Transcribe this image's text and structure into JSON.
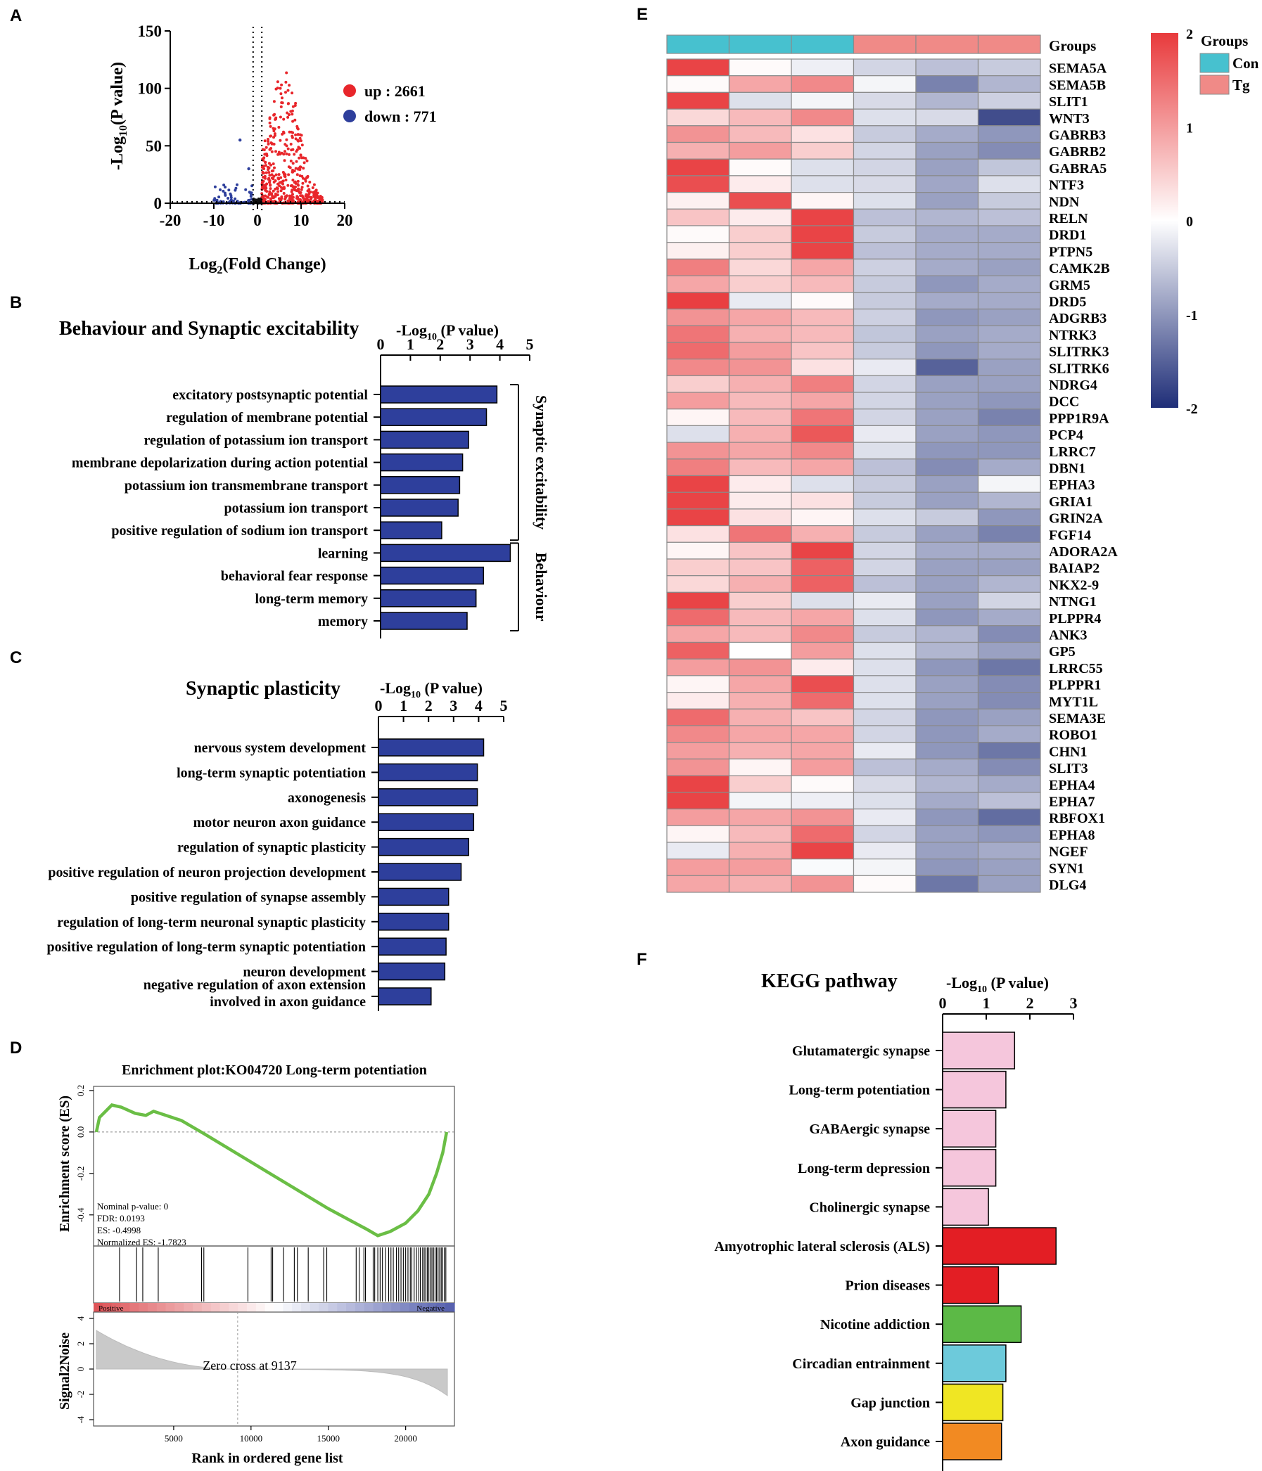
{
  "panel_labels": [
    "A",
    "B",
    "C",
    "D",
    "E",
    "F"
  ],
  "chart_data": [
    {
      "id": "A",
      "type": "scatter",
      "title": "",
      "xlabel_main": "Log",
      "xlabel_sub": "2",
      "xlabel_rest": "(Fold Change)",
      "ylabel_main": "-Log",
      "ylabel_sub": "10",
      "ylabel_rest": "(P value)",
      "xlim": [
        -20,
        20
      ],
      "ylim": [
        0,
        150
      ],
      "xticks": [
        "-20",
        "-10",
        "0",
        "10",
        "20"
      ],
      "yticks": [
        "0",
        "50",
        "100",
        "150"
      ],
      "legend": [
        {
          "label": "up : 2661",
          "color": "#e8262b"
        },
        {
          "label": "down : 771",
          "color": "#2e3f9c"
        }
      ],
      "thresholds": {
        "x": [
          -1,
          1
        ],
        "y": 1.3
      },
      "series": [
        {
          "name": "up",
          "count": 2661,
          "color": "#e8262b",
          "x_range": [
            1,
            15
          ],
          "y_max": 118
        },
        {
          "name": "down",
          "count": 771,
          "color": "#2e3f9c",
          "x_range": [
            -10,
            -1
          ],
          "y_max": 55
        },
        {
          "name": "ns",
          "color": "#111111",
          "x_range": [
            -1,
            1
          ],
          "y_max": 4
        }
      ]
    },
    {
      "id": "B",
      "type": "bar",
      "title": "Behaviour and Synaptic excitability",
      "xlabel_main": "-Log",
      "xlabel_sub": "10",
      "xlabel_rest": " (P value)",
      "xlim": [
        0,
        5
      ],
      "xticks": [
        "0",
        "1",
        "2",
        "3",
        "4",
        "5"
      ],
      "categories": [
        "excitatory postsynaptic potential",
        "regulation of membrane potential",
        "regulation of potassium ion transport",
        "membrane depolarization during action potential",
        "potassium ion transmembrane transport",
        "potassium ion transport",
        "positive regulation of sodium ion transport",
        "learning",
        "behavioral fear response",
        "long-term memory",
        "memory"
      ],
      "values": [
        3.9,
        3.55,
        2.95,
        2.75,
        2.65,
        2.6,
        2.05,
        4.35,
        3.45,
        3.2,
        2.9
      ],
      "color": "#2e3f9c",
      "groups": [
        {
          "label": "Synaptic excitability",
          "from": 0,
          "to": 6
        },
        {
          "label": "Behaviour",
          "from": 7,
          "to": 10
        }
      ]
    },
    {
      "id": "C",
      "type": "bar",
      "title": "Synaptic plasticity",
      "xlabel_main": "-Log",
      "xlabel_sub": "10",
      "xlabel_rest": " (P value)",
      "xlim": [
        0,
        5
      ],
      "xticks": [
        "0",
        "1",
        "2",
        "3",
        "4",
        "5"
      ],
      "categories": [
        [
          "nervous system development"
        ],
        [
          "long-term synaptic potentiation"
        ],
        [
          "axonogenesis"
        ],
        [
          "motor neuron axon guidance"
        ],
        [
          "regulation of synaptic plasticity"
        ],
        [
          "positive regulation of neuron projection development"
        ],
        [
          "positive regulation of synapse assembly"
        ],
        [
          "regulation of long-term neuronal synaptic plasticity"
        ],
        [
          "positive regulation of long-term synaptic potentiation"
        ],
        [
          "neuron development"
        ],
        [
          "negative regulation of axon extension",
          "involved in axon guidance"
        ]
      ],
      "values": [
        4.2,
        3.95,
        3.95,
        3.8,
        3.6,
        3.3,
        2.8,
        2.8,
        2.7,
        2.65,
        2.1
      ],
      "color": "#2e3f9c"
    },
    {
      "id": "D",
      "type": "line",
      "title": "Enrichment plot:KO04720 Long-term potentiation",
      "ylabel": "Enrichment score (ES)",
      "ylabel2": "Signal2Noise",
      "xlabel": "Rank in ordered gene list",
      "xlim": [
        0,
        22700
      ],
      "ylim": [
        -0.55,
        0.22
      ],
      "ylim2": [
        -4.5,
        4.5
      ],
      "yticks": [
        "0.2",
        "0.0",
        "-0.2",
        "-0.4"
      ],
      "yticks2": [
        "4",
        "2",
        "0",
        "-2",
        "-4"
      ],
      "xticks": [
        "5000",
        "10000",
        "15000",
        "20000"
      ],
      "stats": [
        "Nominal p-value: 0",
        "FDR: 0.0193",
        "ES: -0.4998",
        "Normalized ES: -1.7823"
      ],
      "zero_cross": "Zero cross at 9137",
      "zero_cross_rank": 9137,
      "bar_labels": [
        "Positive",
        "Negative"
      ],
      "es_curve": [
        [
          0,
          0.0
        ],
        [
          200,
          0.07
        ],
        [
          600,
          0.1
        ],
        [
          1000,
          0.13
        ],
        [
          1600,
          0.12
        ],
        [
          2500,
          0.09
        ],
        [
          3200,
          0.08
        ],
        [
          3700,
          0.1
        ],
        [
          4500,
          0.08
        ],
        [
          5500,
          0.055
        ],
        [
          7000,
          -0.01
        ],
        [
          9000,
          -0.1
        ],
        [
          11000,
          -0.19
        ],
        [
          13000,
          -0.28
        ],
        [
          15000,
          -0.37
        ],
        [
          16500,
          -0.43
        ],
        [
          17500,
          -0.47
        ],
        [
          18200,
          -0.5
        ],
        [
          19000,
          -0.48
        ],
        [
          20000,
          -0.44
        ],
        [
          20800,
          -0.38
        ],
        [
          21500,
          -0.3
        ],
        [
          22000,
          -0.2
        ],
        [
          22400,
          -0.1
        ],
        [
          22650,
          0.0
        ]
      ],
      "hits": [
        1500,
        2600,
        3000,
        4000,
        6800,
        6950,
        9800,
        11300,
        11400,
        12100,
        12800,
        13000,
        13700,
        14700,
        14900,
        16800,
        17000,
        17300,
        17400,
        17900,
        18000,
        18200,
        18350,
        18500,
        18700,
        18900,
        19050,
        19200,
        19400,
        19550,
        19700,
        19850,
        20000,
        20150,
        20300,
        20400,
        20550,
        20700,
        20850,
        20950,
        21100,
        21200,
        21300,
        21400,
        21500,
        21600,
        21700,
        21800,
        21900,
        22000,
        22100,
        22200,
        22300,
        22400,
        22500,
        22600
      ]
    },
    {
      "id": "E",
      "type": "heatmap",
      "group_row_label": "Groups",
      "groups": [
        "Con",
        "Con",
        "Con",
        "Tg",
        "Tg",
        "Tg"
      ],
      "group_colors": {
        "Con": "#47c1cf",
        "Tg": "#f08a87"
      },
      "legend_title": "Groups",
      "legend": [
        {
          "label": "Con",
          "color": "#47c1cf"
        },
        {
          "label": "Tg",
          "color": "#f08a87"
        }
      ],
      "colorbar": {
        "min": -2,
        "max": 2,
        "ticks": [
          "2",
          "1",
          "0",
          "-1",
          "-2"
        ],
        "colors": [
          "#e83a3c",
          "#ffffff",
          "#1f2e78"
        ]
      },
      "rows": [
        "SEMA5A",
        "SEMA5B",
        "SLIT1",
        "WNT3",
        "GABRB3",
        "GABRB2",
        "GABRA5",
        "NTF3",
        "NDN",
        "RELN",
        "DRD1",
        "PTPN5",
        "CAMK2B",
        "GRM5",
        "DRD5",
        "ADGRB3",
        "NTRK3",
        "SLITRK3",
        "SLITRK6",
        "NDRG4",
        "DCC",
        "PPP1R9A",
        "PCP4",
        "LRRC7",
        "DBN1",
        "EPHA3",
        "GRIA1",
        "GRIN2A",
        "FGF14",
        "ADORA2A",
        "BAIAP2",
        "NKX2-9",
        "NTNG1",
        "PLPPR4",
        "ANK3",
        "GP5",
        "LRRC55",
        "PLPPR1",
        "MYT1L",
        "SEMA3E",
        "ROBO1",
        "CHN1",
        "SLIT3",
        "EPHA4",
        "EPHA7",
        "RBFOX1",
        "EPHA8",
        "NGEF",
        "SYN1",
        "DLG4"
      ],
      "values": [
        [
          1.9,
          0.05,
          -0.15,
          -0.4,
          -0.6,
          -0.5
        ],
        [
          0.05,
          0.9,
          1.2,
          -0.1,
          -1.2,
          -0.7
        ],
        [
          1.9,
          -0.3,
          -0.1,
          -0.35,
          -0.7,
          -0.45
        ],
        [
          0.4,
          0.7,
          1.2,
          -0.3,
          -0.35,
          -1.7
        ],
        [
          1.1,
          0.7,
          0.3,
          -0.5,
          -0.8,
          -1.0
        ],
        [
          0.8,
          1.0,
          0.5,
          -0.4,
          -0.9,
          -1.1
        ],
        [
          1.9,
          0.05,
          -0.3,
          -0.4,
          -0.9,
          -0.55
        ],
        [
          1.8,
          0.2,
          -0.3,
          -0.35,
          -0.85,
          -0.3
        ],
        [
          0.15,
          1.8,
          0.1,
          -0.3,
          -0.9,
          -0.5
        ],
        [
          0.6,
          0.2,
          1.9,
          -0.6,
          -0.7,
          -0.6
        ],
        [
          0.05,
          0.5,
          1.9,
          -0.5,
          -0.8,
          -0.8
        ],
        [
          0.15,
          0.5,
          1.9,
          -0.6,
          -0.8,
          -0.8
        ],
        [
          1.3,
          0.4,
          0.9,
          -0.45,
          -0.8,
          -0.9
        ],
        [
          0.9,
          0.5,
          0.7,
          -0.5,
          -1.0,
          -0.8
        ],
        [
          1.95,
          -0.2,
          0.05,
          -0.5,
          -0.8,
          -0.8
        ],
        [
          1.1,
          0.9,
          0.7,
          -0.45,
          -1.0,
          -0.9
        ],
        [
          1.4,
          0.8,
          0.7,
          -0.55,
          -0.9,
          -0.8
        ],
        [
          1.5,
          1.0,
          0.6,
          -0.5,
          -1.0,
          -0.8
        ],
        [
          1.2,
          1.1,
          0.3,
          -0.2,
          -1.5,
          -0.9
        ],
        [
          0.5,
          0.8,
          1.3,
          -0.4,
          -0.9,
          -0.9
        ],
        [
          1.0,
          0.7,
          0.9,
          -0.4,
          -0.9,
          -1.0
        ],
        [
          0.1,
          0.7,
          1.4,
          -0.4,
          -0.9,
          -1.2
        ],
        [
          -0.3,
          0.8,
          1.7,
          -0.2,
          -0.9,
          -1.0
        ],
        [
          1.1,
          0.9,
          1.2,
          -0.3,
          -1.0,
          -1.0
        ],
        [
          1.3,
          0.7,
          0.9,
          -0.6,
          -1.1,
          -0.8
        ],
        [
          1.9,
          0.2,
          -0.3,
          -0.5,
          -0.9,
          -0.1
        ],
        [
          1.9,
          0.2,
          0.3,
          -0.5,
          -0.9,
          -0.7
        ],
        [
          1.9,
          0.3,
          0.1,
          -0.3,
          -0.5,
          -1.0
        ],
        [
          0.3,
          1.4,
          0.8,
          -0.5,
          -0.9,
          -1.2
        ],
        [
          0.1,
          0.6,
          1.9,
          -0.4,
          -0.8,
          -0.8
        ],
        [
          0.5,
          0.6,
          1.6,
          -0.4,
          -0.9,
          -0.9
        ],
        [
          0.4,
          0.8,
          1.6,
          -0.6,
          -0.9,
          -0.7
        ],
        [
          1.9,
          0.5,
          -0.3,
          -0.2,
          -0.9,
          -0.4
        ],
        [
          1.5,
          0.7,
          0.9,
          -0.3,
          -1.0,
          -0.8
        ],
        [
          0.9,
          0.7,
          1.2,
          -0.5,
          -0.7,
          -1.1
        ],
        [
          1.6,
          0.0,
          1.0,
          -0.3,
          -0.7,
          -0.9
        ],
        [
          1.0,
          1.1,
          0.2,
          -0.3,
          -1.0,
          -1.3
        ],
        [
          0.1,
          0.9,
          1.8,
          -0.3,
          -0.9,
          -1.1
        ],
        [
          0.2,
          0.8,
          1.5,
          -0.3,
          -0.9,
          -1.1
        ],
        [
          1.5,
          0.8,
          0.6,
          -0.4,
          -1.0,
          -0.9
        ],
        [
          1.2,
          0.9,
          0.9,
          -0.4,
          -1.0,
          -0.8
        ],
        [
          1.0,
          0.8,
          0.9,
          -0.2,
          -1.0,
          -1.3
        ],
        [
          1.1,
          0.1,
          1.0,
          -0.6,
          -0.8,
          -1.1
        ],
        [
          1.9,
          0.5,
          0.05,
          -0.35,
          -0.7,
          -0.8
        ],
        [
          1.9,
          -0.1,
          -0.15,
          -0.3,
          -0.8,
          -0.6
        ],
        [
          1.0,
          0.9,
          1.1,
          -0.2,
          -1.0,
          -1.4
        ],
        [
          0.1,
          0.7,
          1.5,
          -0.4,
          -0.9,
          -1.0
        ],
        [
          -0.2,
          0.8,
          1.9,
          -0.2,
          -0.9,
          -0.8
        ],
        [
          1.0,
          1.0,
          -0.05,
          -0.1,
          -1.0,
          -0.9
        ],
        [
          0.9,
          0.8,
          1.1,
          0.05,
          -1.3,
          -0.9
        ]
      ]
    },
    {
      "id": "F",
      "type": "bar",
      "title": "KEGG pathway",
      "xlabel_main": "-Log",
      "xlabel_sub": "10",
      "xlabel_rest": " (P value)",
      "xlim": [
        0,
        3
      ],
      "xticks": [
        "0",
        "1",
        "2",
        "3"
      ],
      "categories": [
        "Glutamatergic synapse",
        "Long-term potentiation",
        "GABAergic synapse",
        "Long-term depression",
        "Cholinergic synapse",
        "Amyotrophic lateral sclerosis (ALS)",
        "Prion diseases",
        "Nicotine addiction",
        "Circadian entrainment",
        "Gap junction",
        "Axon guidance"
      ],
      "values": [
        1.65,
        1.45,
        1.22,
        1.22,
        1.05,
        2.6,
        1.28,
        1.8,
        1.45,
        1.38,
        1.35
      ],
      "colors": [
        "#f5c6dc",
        "#f5c6dc",
        "#f5c6dc",
        "#f5c6dc",
        "#f5c6dc",
        "#e31e24",
        "#e31e24",
        "#5cb946",
        "#6dcadb",
        "#f0e623",
        "#f28a22"
      ]
    }
  ]
}
